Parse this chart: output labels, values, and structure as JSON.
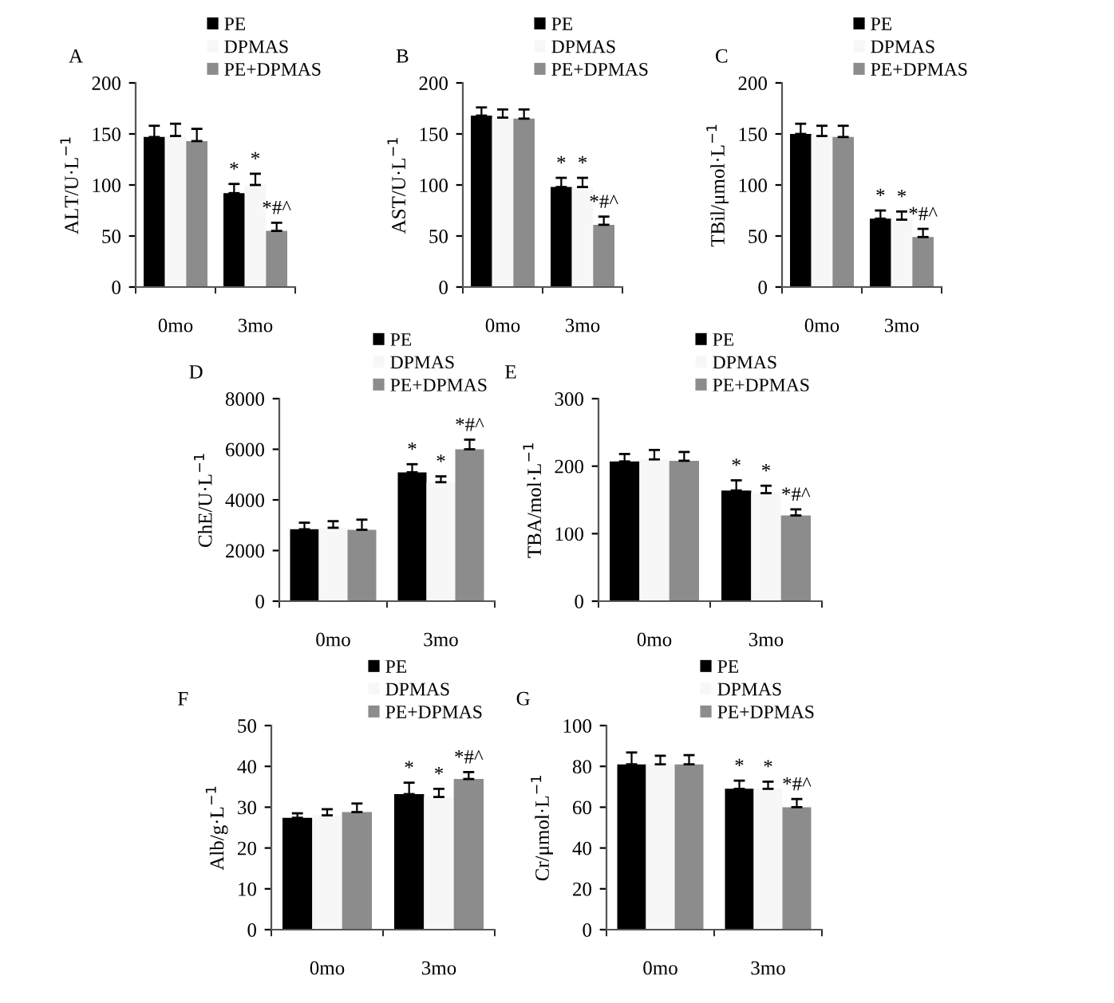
{
  "chart_data": [
    {
      "type": "bar",
      "title": "A",
      "ylabel": "ALT/U·L$^{−1}$",
      "categories": [
        "0mo",
        "3mo"
      ],
      "ylim": [
        0,
        200
      ],
      "yticks": [
        0,
        50,
        100,
        150,
        200
      ],
      "legend": "top right",
      "series": [
        {
          "name": "PE",
          "color": "#000000",
          "values": [
            147,
            92
          ],
          "errors": [
            11,
            9
          ]
        },
        {
          "name": "DPMAS",
          "color": "#f7f7f7",
          "values": [
            148,
            100
          ],
          "errors": [
            12,
            11
          ]
        },
        {
          "name": "PE+DPMAS",
          "color": "#8c8c8c",
          "values": [
            143,
            55
          ],
          "errors": [
            12,
            8
          ]
        }
      ],
      "annotations": [
        "*",
        "*",
        "*#^"
      ]
    },
    {
      "type": "bar",
      "title": "B",
      "ylabel": "AST/U·L$^{−1}$",
      "categories": [
        "0mo",
        "3mo"
      ],
      "ylim": [
        0,
        200
      ],
      "yticks": [
        0,
        50,
        100,
        150,
        200
      ],
      "legend": "top right",
      "series": [
        {
          "name": "PE",
          "color": "#000000",
          "values": [
            168,
            98
          ],
          "errors": [
            8,
            9
          ]
        },
        {
          "name": "DPMAS",
          "color": "#f7f7f7",
          "values": [
            166,
            98
          ],
          "errors": [
            8,
            9
          ]
        },
        {
          "name": "PE+DPMAS",
          "color": "#8c8c8c",
          "values": [
            165,
            61
          ],
          "errors": [
            9,
            8
          ]
        }
      ],
      "annotations": [
        "*",
        "*",
        "*#^"
      ]
    },
    {
      "type": "bar",
      "title": "C",
      "ylabel": "TBil/μmol·L$^{−1}$",
      "categories": [
        "0mo",
        "3mo"
      ],
      "ylim": [
        0,
        200
      ],
      "yticks": [
        0,
        50,
        100,
        150,
        200
      ],
      "legend": "top right",
      "series": [
        {
          "name": "PE",
          "color": "#000000",
          "values": [
            150,
            67
          ],
          "errors": [
            10,
            8
          ]
        },
        {
          "name": "DPMAS",
          "color": "#f7f7f7",
          "values": [
            148,
            66
          ],
          "errors": [
            10,
            8
          ]
        },
        {
          "name": "PE+DPMAS",
          "color": "#8c8c8c",
          "values": [
            147,
            49
          ],
          "errors": [
            11,
            8
          ]
        }
      ],
      "annotations": [
        "*",
        "*",
        "*#^"
      ]
    },
    {
      "type": "bar",
      "title": "D",
      "ylabel": "ChE/U·L$^{−1}$",
      "categories": [
        "0mo",
        "3mo"
      ],
      "ylim": [
        0,
        8000
      ],
      "yticks": [
        0,
        2000,
        4000,
        6000,
        8000
      ],
      "legend": "top right",
      "series": [
        {
          "name": "PE",
          "color": "#000000",
          "values": [
            2840,
            5090
          ],
          "errors": [
            260,
            320
          ]
        },
        {
          "name": "DPMAS",
          "color": "#f7f7f7",
          "values": [
            2900,
            4700
          ],
          "errors": [
            260,
            230
          ]
        },
        {
          "name": "PE+DPMAS",
          "color": "#8c8c8c",
          "values": [
            2820,
            6000
          ],
          "errors": [
            400,
            380
          ]
        }
      ],
      "annotations": [
        "*",
        "*",
        "*#^"
      ]
    },
    {
      "type": "bar",
      "title": "E",
      "ylabel": "TBA/mol·L$^{−1}$",
      "categories": [
        "0mo",
        "3mo"
      ],
      "ylim": [
        0,
        300
      ],
      "yticks": [
        0,
        100,
        200,
        300
      ],
      "legend": "top right",
      "series": [
        {
          "name": "PE",
          "color": "#000000",
          "values": [
            207,
            164
          ],
          "errors": [
            11,
            15
          ]
        },
        {
          "name": "DPMAS",
          "color": "#f7f7f7",
          "values": [
            210,
            160
          ],
          "errors": [
            14,
            11
          ]
        },
        {
          "name": "PE+DPMAS",
          "color": "#8c8c8c",
          "values": [
            208,
            127
          ],
          "errors": [
            13,
            9
          ]
        }
      ],
      "annotations": [
        "*",
        "*",
        "*#^"
      ]
    },
    {
      "type": "bar",
      "title": "F",
      "ylabel": "Alb/g·L$^{−1}$",
      "categories": [
        "0mo",
        "3mo"
      ],
      "ylim": [
        0,
        50
      ],
      "yticks": [
        0,
        10,
        20,
        30,
        40,
        50
      ],
      "legend": "top right",
      "series": [
        {
          "name": "PE",
          "color": "#000000",
          "values": [
            27.4,
            33.2
          ],
          "errors": [
            1.1,
            2.8
          ]
        },
        {
          "name": "DPMAS",
          "color": "#f7f7f7",
          "values": [
            28,
            32.5
          ],
          "errors": [
            1.5,
            2
          ]
        },
        {
          "name": "PE+DPMAS",
          "color": "#8c8c8c",
          "values": [
            28.8,
            36.9
          ],
          "errors": [
            2.1,
            1.7
          ]
        }
      ],
      "annotations": [
        "*",
        "*",
        "*#^"
      ]
    },
    {
      "type": "bar",
      "title": "G",
      "ylabel": "Cr/μmol·L$^{−1}$",
      "categories": [
        "0mo",
        "3mo"
      ],
      "ylim": [
        0,
        100
      ],
      "yticks": [
        0,
        20,
        40,
        60,
        80,
        100
      ],
      "legend": "top right",
      "series": [
        {
          "name": "PE",
          "color": "#000000",
          "values": [
            81,
            69
          ],
          "errors": [
            5.8,
            4
          ]
        },
        {
          "name": "DPMAS",
          "color": "#f7f7f7",
          "values": [
            81,
            69
          ],
          "errors": [
            4.2,
            3.5
          ]
        },
        {
          "name": "PE+DPMAS",
          "color": "#8c8c8c",
          "values": [
            81,
            60
          ],
          "errors": [
            4.5,
            4
          ]
        }
      ],
      "annotations": [
        "*",
        "*",
        "*#^"
      ]
    }
  ]
}
